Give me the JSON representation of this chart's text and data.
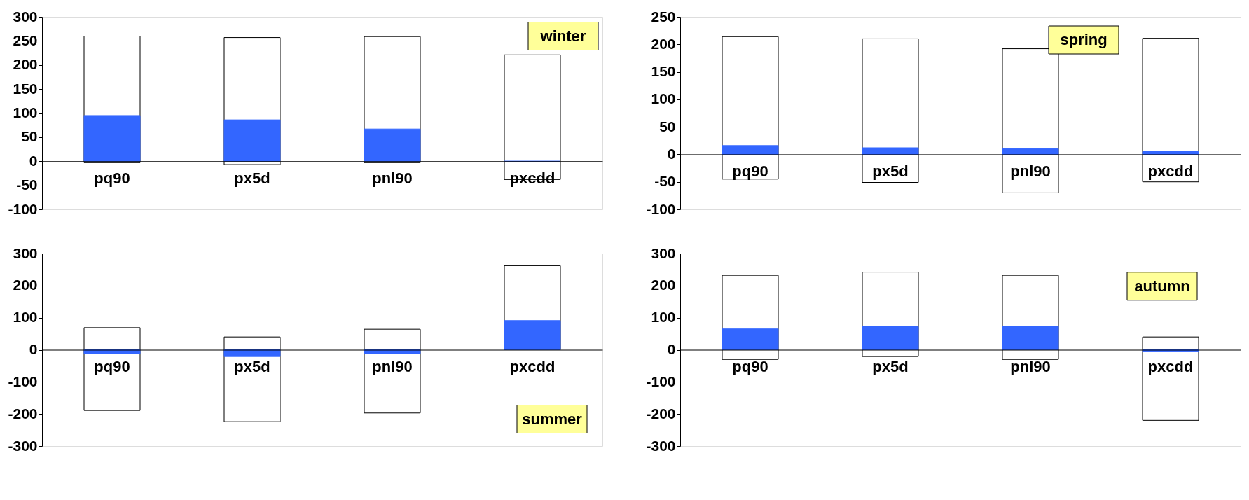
{
  "chart_data": [
    {
      "type": "bar",
      "annotations": [
        "winter"
      ],
      "categories": [
        "pq90",
        "px5d",
        "pnl90",
        "pxcdd"
      ],
      "ylim": [
        -100,
        300
      ],
      "yticks": [
        -100,
        -50,
        0,
        50,
        100,
        150,
        200,
        250,
        300
      ],
      "grid": false,
      "legend": false,
      "series": [
        {
          "color": "#ffffff",
          "base": [
            -3,
            -7,
            -3,
            -38
          ],
          "values": [
            263,
            264,
            262,
            259
          ]
        },
        {
          "color": "#3366ff",
          "values": [
            95,
            86,
            67,
            0
          ]
        }
      ]
    },
    {
      "type": "bar",
      "annotations": [
        "spring"
      ],
      "categories": [
        "pq90",
        "px5d",
        "pnl90",
        "pxcdd"
      ],
      "ylim": [
        -100,
        250
      ],
      "yticks": [
        -100,
        -50,
        0,
        50,
        100,
        150,
        200,
        250
      ],
      "grid": false,
      "legend": false,
      "series": [
        {
          "color": "#ffffff",
          "base": [
            -45,
            -51,
            -70,
            -50
          ],
          "values": [
            259,
            261,
            262,
            261
          ]
        },
        {
          "color": "#3366ff",
          "values": [
            16,
            12,
            10,
            5
          ]
        }
      ]
    },
    {
      "type": "bar",
      "annotations": [
        "summer"
      ],
      "categories": [
        "pq90",
        "px5d",
        "pnl90",
        "pxcdd"
      ],
      "ylim": [
        -300,
        300
      ],
      "yticks": [
        -300,
        -200,
        -100,
        0,
        100,
        200,
        300
      ],
      "grid": false,
      "legend": false,
      "series": [
        {
          "color": "#ffffff",
          "base": [
            -189,
            -224,
            -197,
            0
          ],
          "values": [
            258,
            264,
            261,
            262
          ]
        },
        {
          "color": "#3366ff",
          "values": [
            -12,
            -21,
            -13,
            91
          ]
        }
      ]
    },
    {
      "type": "bar",
      "annotations": [
        "autumn"
      ],
      "categories": [
        "pq90",
        "px5d",
        "pnl90",
        "pxcdd"
      ],
      "ylim": [
        -300,
        300
      ],
      "yticks": [
        -300,
        -200,
        -100,
        0,
        100,
        200,
        300
      ],
      "grid": false,
      "legend": false,
      "series": [
        {
          "color": "#ffffff",
          "base": [
            -30,
            -21,
            -30,
            -220
          ],
          "values": [
            262,
            263,
            262,
            260
          ]
        },
        {
          "color": "#3366ff",
          "values": [
            65,
            72,
            74,
            -5
          ]
        }
      ]
    }
  ]
}
